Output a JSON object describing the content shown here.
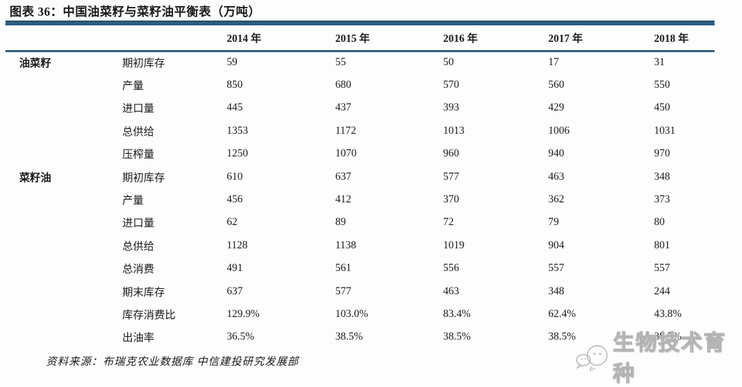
{
  "title": "图表 36：中国油菜籽与菜籽油平衡表（万吨）",
  "source_note": "资料来源：布瑞克农业数据库 中信建投研究发展部",
  "watermark": {
    "icon": "wechat-logo-icon",
    "text": "生物技术育种"
  },
  "colors": {
    "accent_bar": "#2B5C80",
    "text": "#1a1a1a",
    "watermark_gray": "#b3b3b3"
  },
  "chart_data": {
    "type": "table",
    "title": "图表 36：中国油菜籽与菜籽油平衡表（万吨）",
    "unit": "万吨",
    "year_columns": [
      "2014 年",
      "2015 年",
      "2016 年",
      "2017 年",
      "2018 年"
    ],
    "groups": [
      {
        "name": "油菜籽",
        "rows": [
          {
            "label": "期初库存",
            "values": [
              "59",
              "55",
              "50",
              "17",
              "31"
            ]
          },
          {
            "label": "产量",
            "values": [
              "850",
              "680",
              "570",
              "560",
              "550"
            ]
          },
          {
            "label": "进口量",
            "values": [
              "445",
              "437",
              "393",
              "429",
              "450"
            ]
          },
          {
            "label": "总供给",
            "values": [
              "1353",
              "1172",
              "1013",
              "1006",
              "1031"
            ]
          },
          {
            "label": "压榨量",
            "values": [
              "1250",
              "1070",
              "960",
              "940",
              "970"
            ]
          }
        ]
      },
      {
        "name": "菜籽油",
        "rows": [
          {
            "label": "期初库存",
            "values": [
              "610",
              "637",
              "577",
              "463",
              "348"
            ]
          },
          {
            "label": "产量",
            "values": [
              "456",
              "412",
              "370",
              "362",
              "373"
            ]
          },
          {
            "label": "进口量",
            "values": [
              "62",
              "89",
              "72",
              "79",
              "80"
            ]
          },
          {
            "label": "总供给",
            "values": [
              "1128",
              "1138",
              "1019",
              "904",
              "801"
            ]
          },
          {
            "label": "总消费",
            "values": [
              "491",
              "561",
              "556",
              "557",
              "557"
            ]
          },
          {
            "label": "期末库存",
            "values": [
              "637",
              "577",
              "463",
              "348",
              "244"
            ]
          },
          {
            "label": "库存消费比",
            "values": [
              "129.9%",
              "103.0%",
              "83.4%",
              "62.4%",
              "43.8%"
            ]
          },
          {
            "label": "出油率",
            "values": [
              "36.5%",
              "38.5%",
              "38.5%",
              "38.5%",
              "38.5%"
            ]
          }
        ]
      }
    ],
    "source": "资料来源：布瑞克农业数据库 中信建投研究发展部",
    "layout": {
      "grid": "horizontal rules only",
      "header_rule_color": "#2B5C80"
    }
  }
}
